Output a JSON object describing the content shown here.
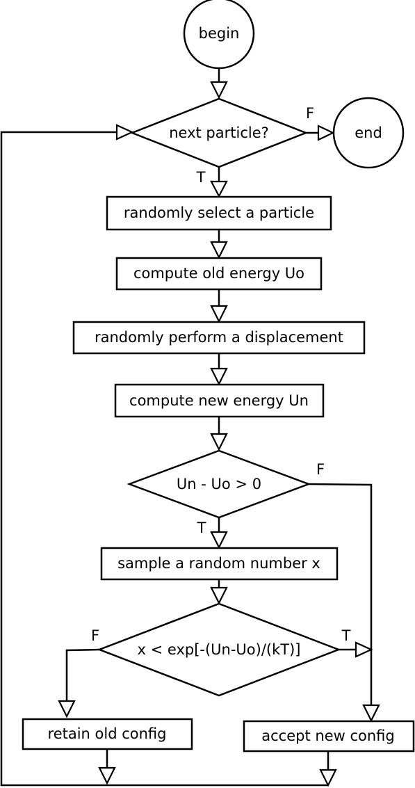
{
  "nodes": {
    "begin": "begin",
    "end": "end",
    "next_particle": "next particle?",
    "select_particle": "randomly select a particle",
    "old_energy": "compute old energy Uo",
    "displacement": "randomly perform a displacement",
    "new_energy": "compute new energy Un",
    "energy_check": "Un - Uo > 0",
    "sample_random": "sample a random number x",
    "metropolis_check": "x < exp[-(Un-Uo)/(kT)]",
    "retain_config": "retain old config",
    "accept_config": "accept new config"
  },
  "edge_labels": {
    "next_false": "F",
    "next_true": "T",
    "energy_false": "F",
    "energy_true": "T",
    "metropolis_false": "F",
    "metropolis_true": "T"
  }
}
